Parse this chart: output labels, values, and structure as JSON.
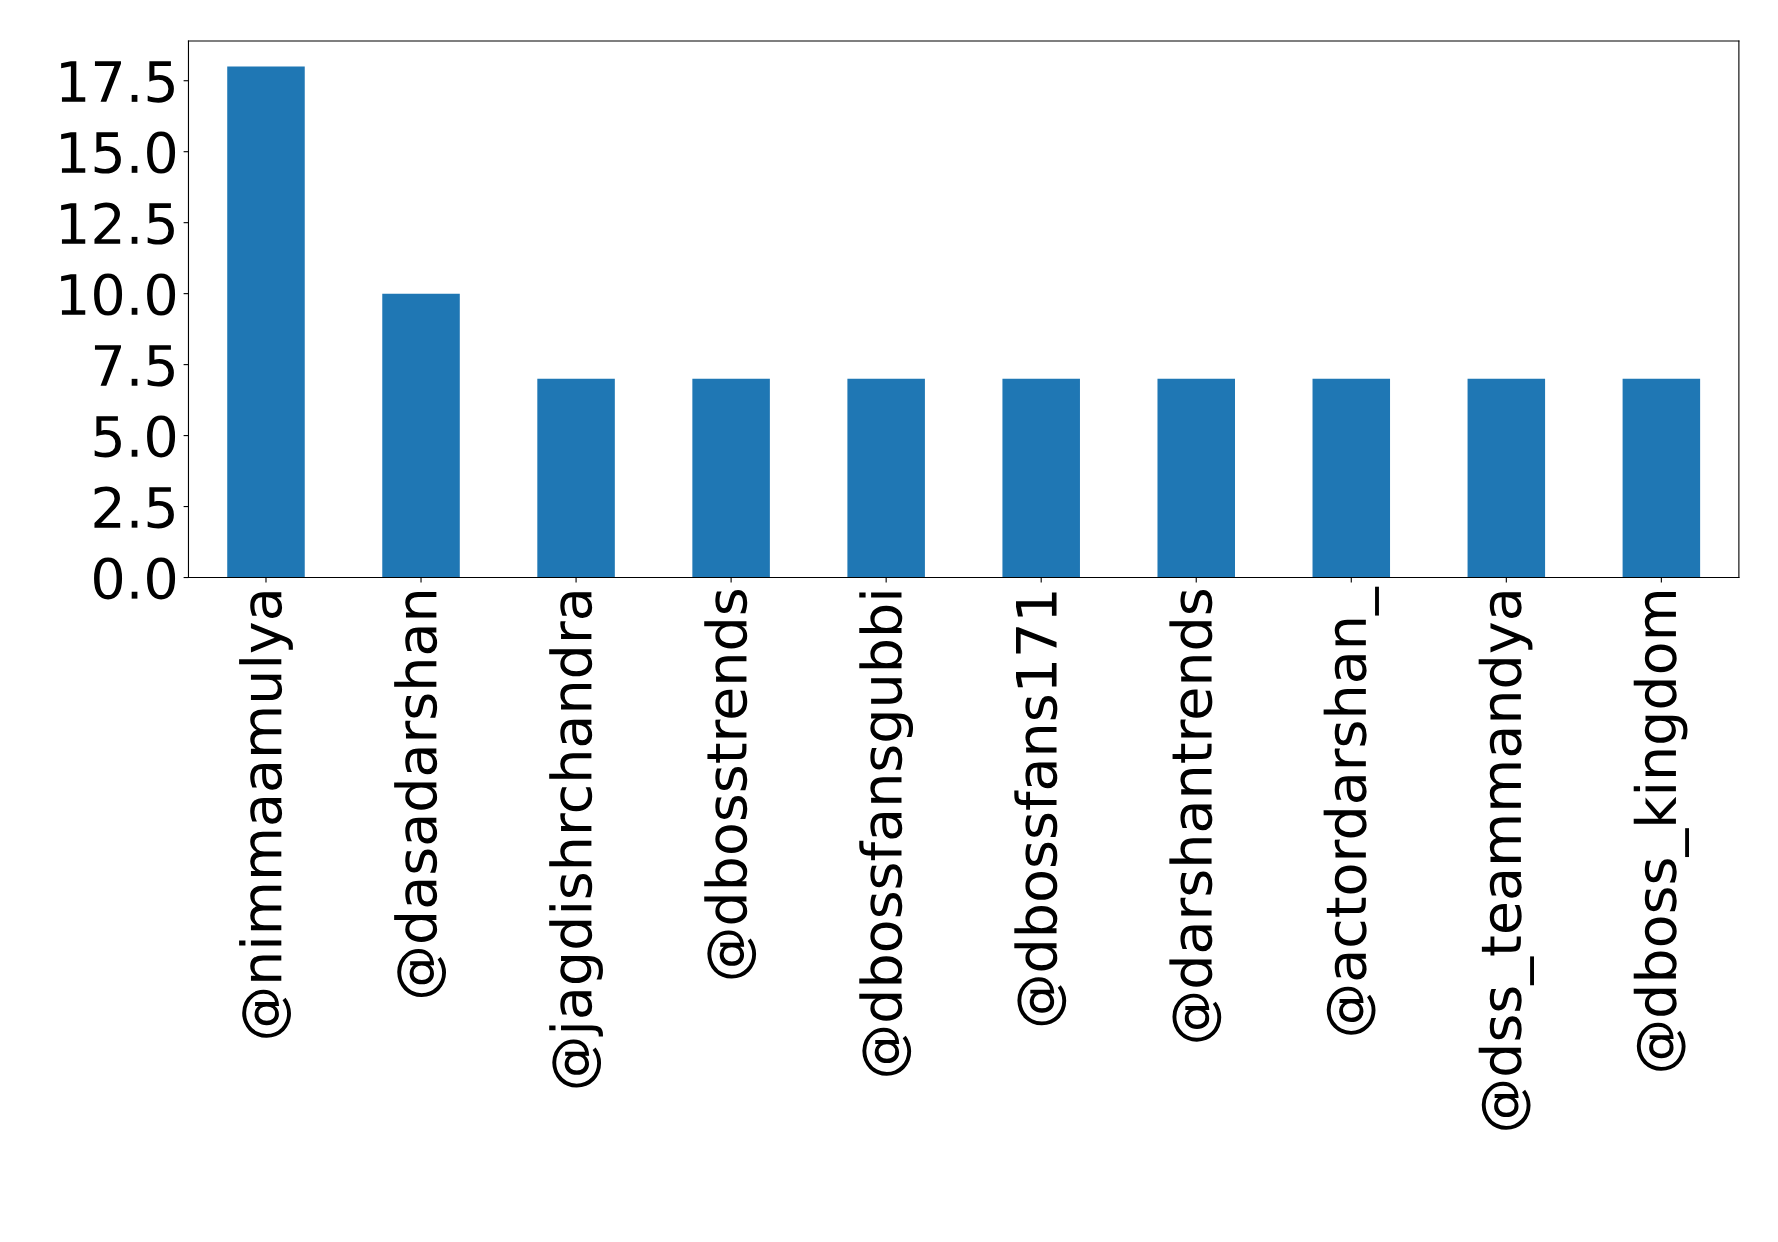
{
  "chart_data": {
    "type": "bar",
    "categories": [
      "@nimmaamulya",
      "@dasadarshan",
      "@jagdishrchandra",
      "@dbosstrends",
      "@dbossfansgubbi",
      "@dbossfans171",
      "@darshantrends",
      "@actordarshan_",
      "@dss_teammandya",
      "@dboss_kingdom"
    ],
    "values": [
      18,
      10,
      7,
      7,
      7,
      7,
      7,
      7,
      7,
      7
    ],
    "color": "#1f77b4",
    "ylim": [
      0,
      18.9
    ],
    "yticks": [
      {
        "value": 0,
        "label": "0.0"
      },
      {
        "value": 2.5,
        "label": "2.5"
      },
      {
        "value": 5,
        "label": "5.0"
      },
      {
        "value": 7.5,
        "label": "7.5"
      },
      {
        "value": 10,
        "label": "10.0"
      },
      {
        "value": 12.5,
        "label": "12.5"
      },
      {
        "value": 15,
        "label": "15.0"
      },
      {
        "value": 17.5,
        "label": "17.5"
      }
    ],
    "grid": false,
    "legend": false
  }
}
